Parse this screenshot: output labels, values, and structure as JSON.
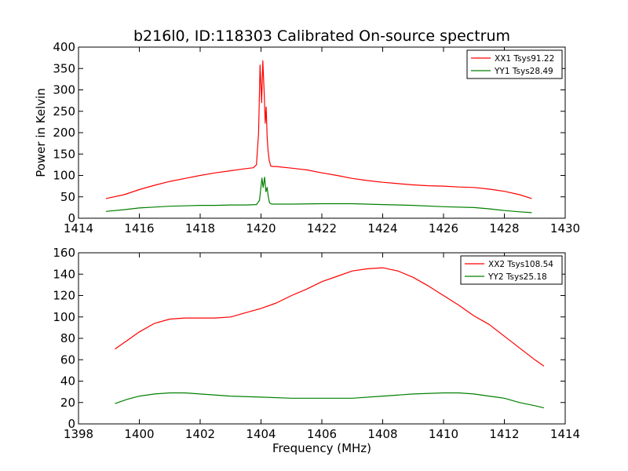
{
  "page": {
    "title": "b216l0, ID:118303 Calibrated On-source spectrum"
  },
  "chart_data": [
    {
      "type": "line",
      "title": "b216l0, ID:118303 Calibrated On-source spectrum",
      "xlabel": "",
      "ylabel": "Power in Kelvin",
      "xlim": [
        1414,
        1430
      ],
      "ylim": [
        0,
        400
      ],
      "xticks": [
        "1414",
        "1416",
        "1418",
        "1420",
        "1422",
        "1424",
        "1426",
        "1428",
        "1430"
      ],
      "yticks": [
        "0",
        "50",
        "100",
        "150",
        "200",
        "250",
        "300",
        "350",
        "400"
      ],
      "legend_position": "top-right",
      "series": [
        {
          "name": "XX1 Tsys91.22",
          "color": "#ff0000",
          "x": [
            1414.9,
            1415.5,
            1416.0,
            1416.5,
            1417.0,
            1417.5,
            1418.0,
            1418.5,
            1419.0,
            1419.5,
            1419.75,
            1419.85,
            1419.92,
            1419.97,
            1420.02,
            1420.06,
            1420.1,
            1420.14,
            1420.17,
            1420.2,
            1420.23,
            1420.27,
            1420.32,
            1420.4,
            1420.5,
            1421.0,
            1421.5,
            1422.0,
            1422.5,
            1423.0,
            1423.5,
            1424.0,
            1424.5,
            1425.0,
            1425.5,
            1426.0,
            1426.5,
            1427.0,
            1427.5,
            1428.0,
            1428.5,
            1428.9
          ],
          "y": [
            46,
            55,
            67,
            77,
            86,
            93,
            100,
            106,
            111,
            116,
            118,
            125,
            200,
            358,
            270,
            368,
            300,
            222,
            260,
            190,
            160,
            135,
            122,
            121,
            121,
            117,
            113,
            106,
            100,
            93,
            88,
            84,
            81,
            78,
            76,
            75,
            73,
            72,
            68,
            63,
            55,
            46
          ]
        },
        {
          "name": "YY1 Tsys28.49",
          "color": "#008000",
          "x": [
            1414.9,
            1415.5,
            1416.0,
            1416.5,
            1417.0,
            1417.5,
            1418.0,
            1418.5,
            1419.0,
            1419.5,
            1419.85,
            1419.95,
            1420.03,
            1420.07,
            1420.12,
            1420.16,
            1420.2,
            1420.24,
            1420.28,
            1420.35,
            1420.5,
            1421.0,
            1422.0,
            1423.0,
            1424.0,
            1425.0,
            1426.0,
            1427.0,
            1427.5,
            1428.0,
            1428.5,
            1428.9
          ],
          "y": [
            16,
            20,
            24,
            26,
            28,
            29,
            30,
            30,
            31,
            31,
            32,
            42,
            94,
            72,
            96,
            62,
            72,
            50,
            36,
            33,
            33,
            33,
            34,
            34,
            32,
            30,
            27,
            25,
            22,
            18,
            15,
            13
          ]
        }
      ]
    },
    {
      "type": "line",
      "title": "",
      "xlabel": "Frequency (MHz)",
      "ylabel": "",
      "xlim": [
        1398,
        1414
      ],
      "ylim": [
        0,
        160
      ],
      "xticks": [
        "1398",
        "1400",
        "1402",
        "1404",
        "1406",
        "1408",
        "1410",
        "1412",
        "1414"
      ],
      "yticks": [
        "0",
        "20",
        "40",
        "60",
        "80",
        "100",
        "120",
        "140",
        "160"
      ],
      "legend_position": "top-right",
      "series": [
        {
          "name": "XX2 Tsys108.54",
          "color": "#ff0000",
          "x": [
            1399.2,
            1399.6,
            1400.0,
            1400.5,
            1401.0,
            1401.5,
            1402.0,
            1402.5,
            1403.0,
            1403.5,
            1404.0,
            1404.5,
            1405.0,
            1405.5,
            1406.0,
            1406.5,
            1407.0,
            1407.5,
            1408.0,
            1408.5,
            1409.0,
            1409.5,
            1410.0,
            1410.5,
            1411.0,
            1411.5,
            1412.0,
            1412.5,
            1413.0,
            1413.3
          ],
          "y": [
            70,
            78,
            86,
            94,
            98,
            99,
            99,
            99,
            100,
            104,
            108,
            113,
            120,
            126,
            133,
            138,
            143,
            145,
            146,
            143,
            137,
            129,
            120,
            111,
            101,
            93,
            82,
            71,
            60,
            54
          ]
        },
        {
          "name": "YY2 Tsys25.18",
          "color": "#008000",
          "x": [
            1399.2,
            1399.6,
            1400.0,
            1400.5,
            1401.0,
            1401.5,
            1402.0,
            1403.0,
            1404.0,
            1405.0,
            1406.0,
            1407.0,
            1408.0,
            1409.0,
            1410.0,
            1410.5,
            1411.0,
            1411.5,
            1412.0,
            1412.5,
            1413.0,
            1413.3
          ],
          "y": [
            19,
            23,
            26,
            28,
            29,
            29,
            28,
            26,
            25,
            24,
            24,
            24,
            26,
            28,
            29,
            29,
            28,
            26,
            24,
            20,
            17,
            15
          ]
        }
      ]
    }
  ]
}
